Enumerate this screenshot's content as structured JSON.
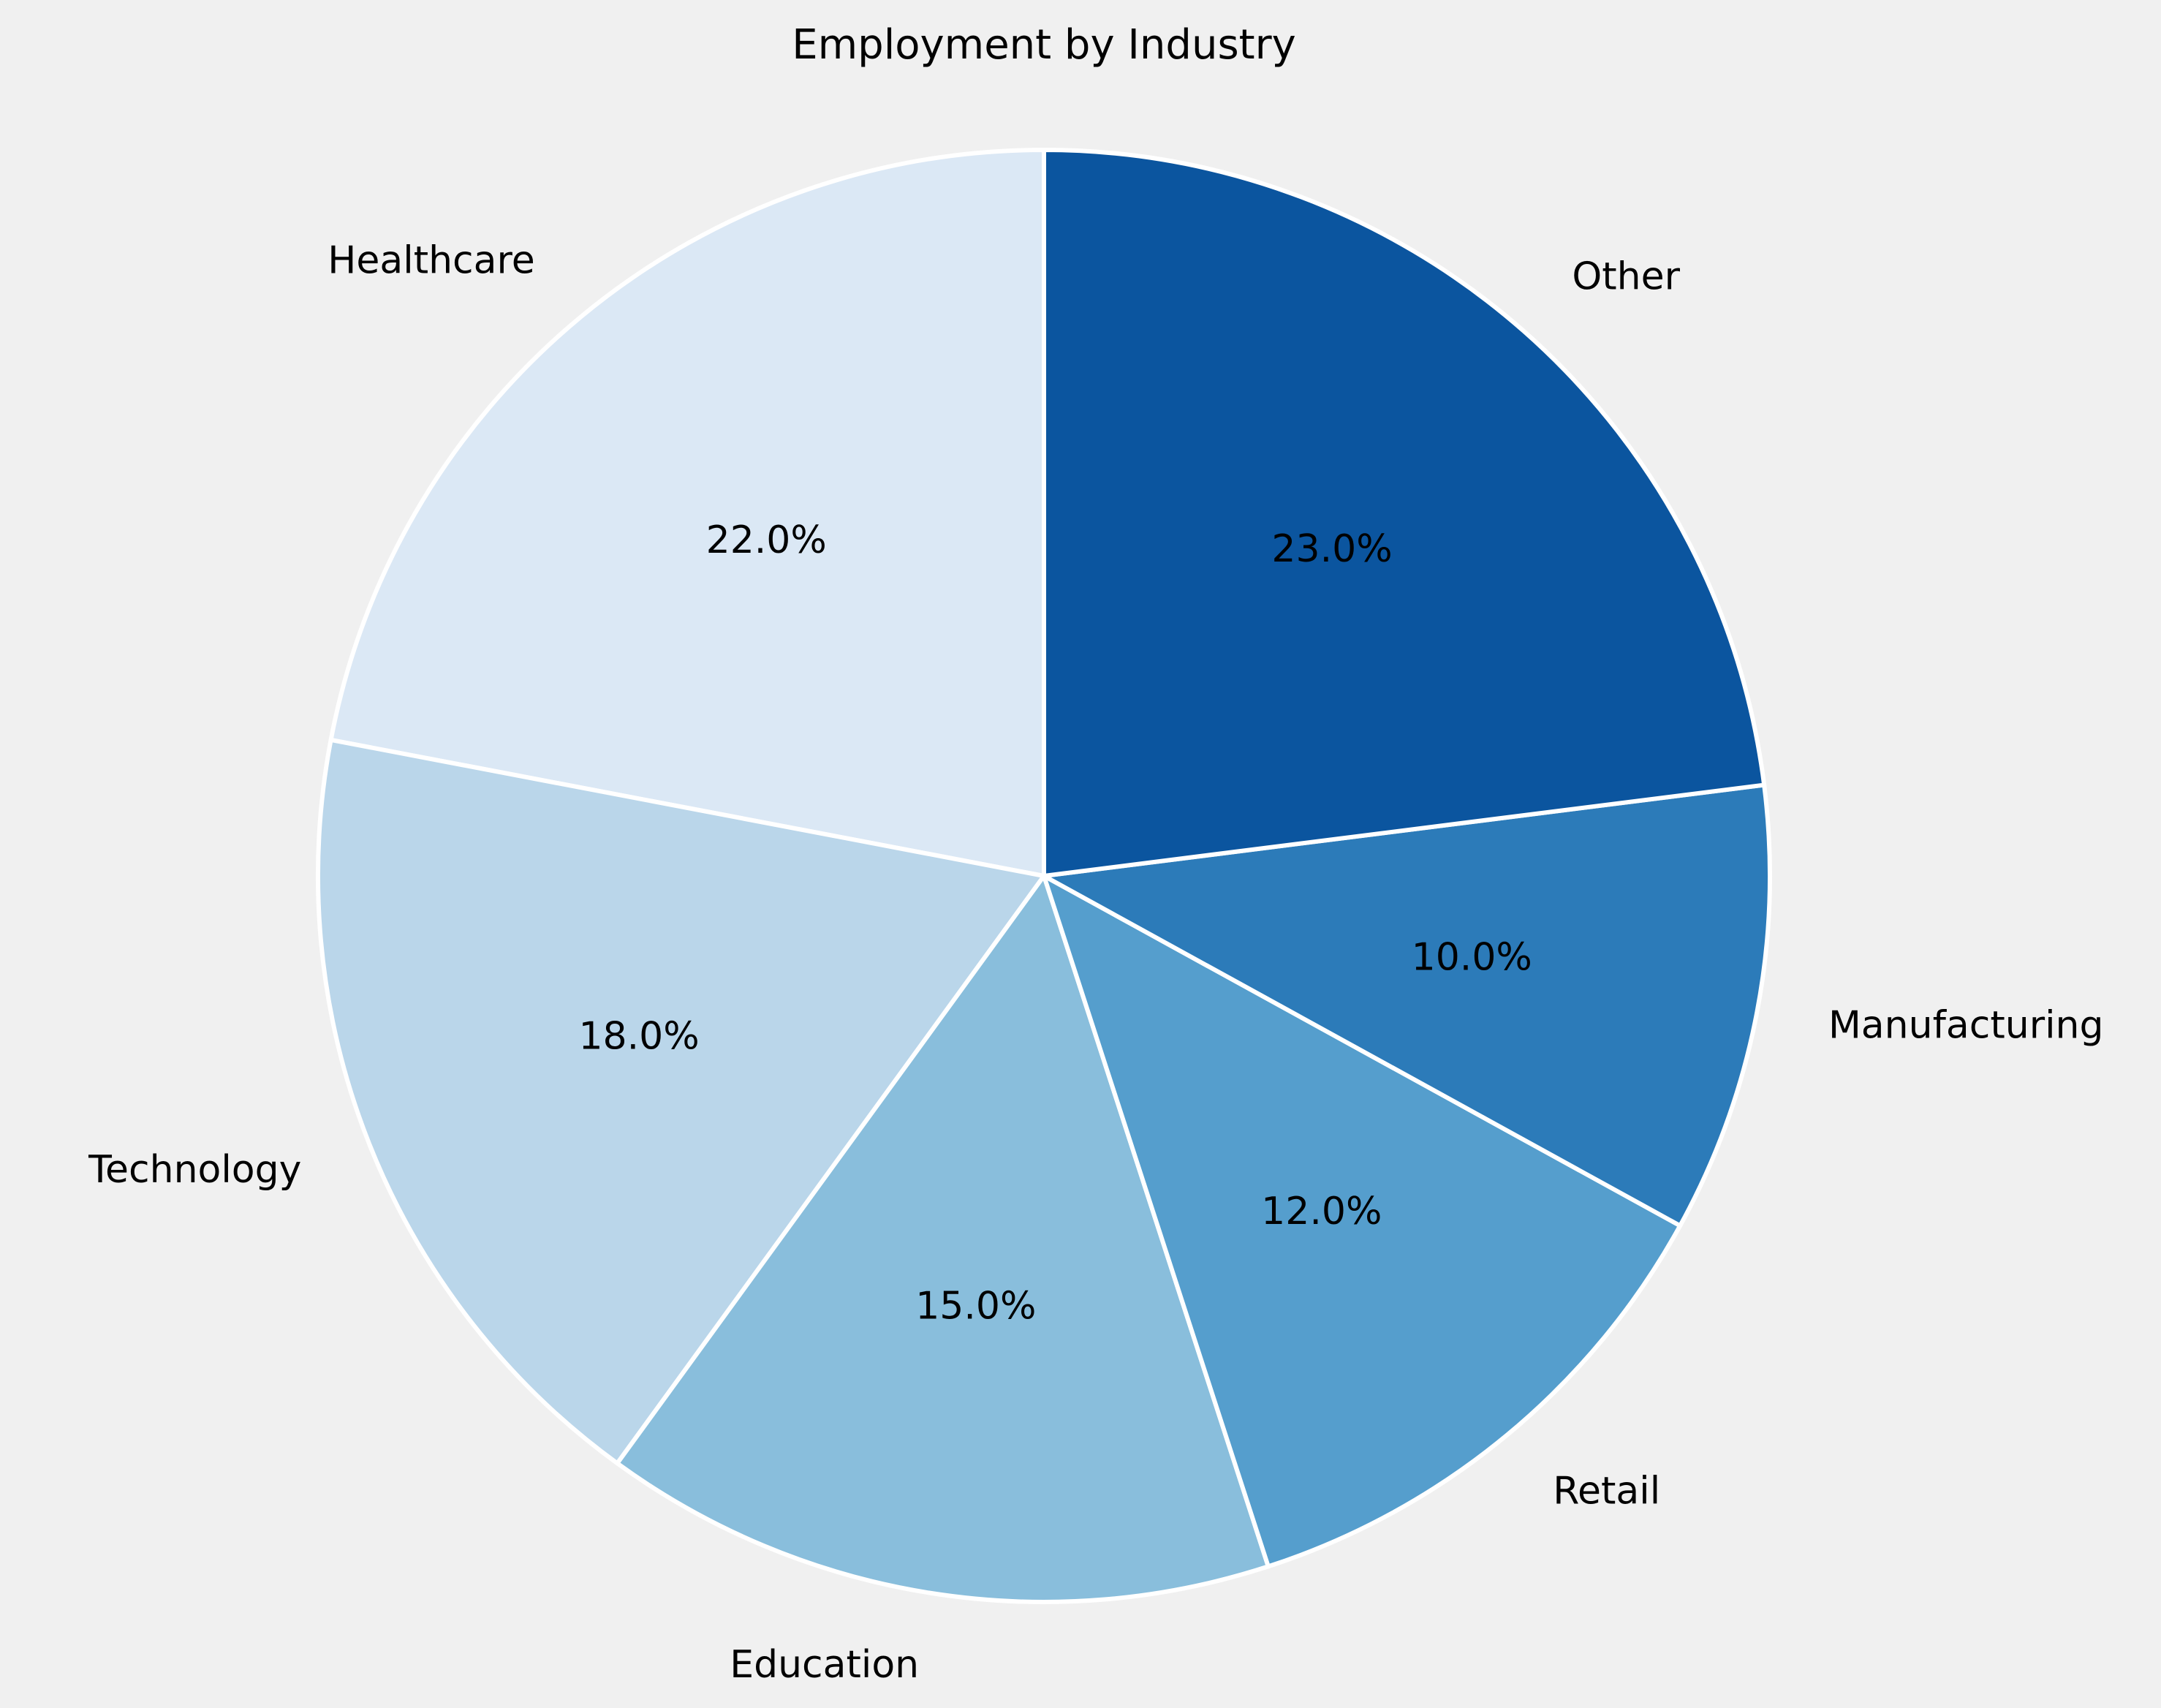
{
  "chart_data": {
    "type": "pie",
    "title": "Employment by Industry",
    "categories": [
      "Healthcare",
      "Technology",
      "Education",
      "Retail",
      "Manufacturing",
      "Other"
    ],
    "values": [
      22.0,
      18.0,
      15.0,
      12.0,
      10.0,
      23.0
    ],
    "value_labels": [
      "22.0%",
      "18.0%",
      "15.0%",
      "12.0%",
      "10.0%",
      "23.0%"
    ],
    "colors": [
      "#dbe8f5",
      "#bad6ea",
      "#89bedc",
      "#559ecd",
      "#2c7bb9",
      "#0b559f"
    ],
    "start_angle_deg": 90,
    "direction": "counterclockwise",
    "edge_color": "#ffffff"
  }
}
